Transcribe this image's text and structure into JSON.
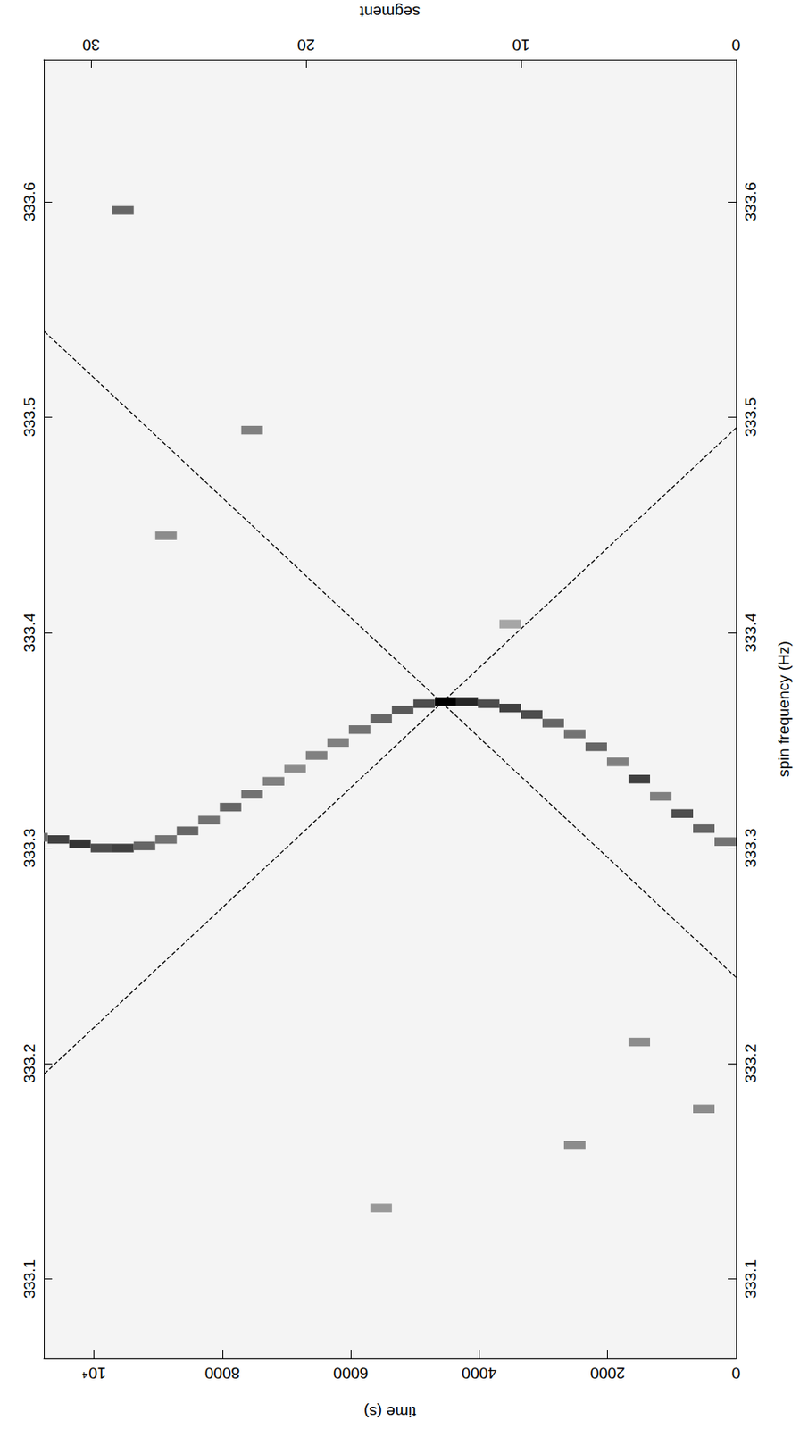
{
  "chart_data": {
    "type": "heatmap",
    "x_label": "time (s)",
    "x2_label": "segment",
    "y_label": "spin frequency (Hz)",
    "xlim": [
      0,
      10780
    ],
    "xticks": [
      0,
      2000,
      4000,
      6000,
      8000,
      {
        "value": 10000,
        "label": "10⁴"
      }
    ],
    "x2lim": [
      0,
      32.2
    ],
    "x2ticks": [
      0,
      10,
      20,
      30
    ],
    "ylim": [
      333.063,
      333.666
    ],
    "yticks": [
      333.1,
      333.2,
      333.3,
      333.4,
      333.5,
      333.6
    ],
    "grid": false,
    "segment_duration": 335,
    "frequency_bin": 0.004,
    "zlim": [
      0,
      1
    ],
    "cells": [
      [
        0,
        333.303,
        0.55
      ],
      [
        335,
        333.309,
        0.6
      ],
      [
        670,
        333.316,
        0.7
      ],
      [
        1005,
        333.324,
        0.5
      ],
      [
        1340,
        333.332,
        0.75
      ],
      [
        1675,
        333.34,
        0.5
      ],
      [
        2010,
        333.347,
        0.6
      ],
      [
        2345,
        333.353,
        0.55
      ],
      [
        2680,
        333.358,
        0.6
      ],
      [
        3015,
        333.362,
        0.7
      ],
      [
        3350,
        333.365,
        0.75
      ],
      [
        3685,
        333.367,
        0.7
      ],
      [
        4020,
        333.368,
        0.85
      ],
      [
        4355,
        333.368,
        1.0
      ],
      [
        4690,
        333.367,
        0.7
      ],
      [
        5025,
        333.364,
        0.65
      ],
      [
        5360,
        333.36,
        0.6
      ],
      [
        5695,
        333.355,
        0.55
      ],
      [
        6030,
        333.349,
        0.5
      ],
      [
        6365,
        333.343,
        0.5
      ],
      [
        6700,
        333.337,
        0.45
      ],
      [
        7035,
        333.331,
        0.5
      ],
      [
        7370,
        333.325,
        0.55
      ],
      [
        7705,
        333.319,
        0.6
      ],
      [
        8040,
        333.313,
        0.55
      ],
      [
        8375,
        333.308,
        0.6
      ],
      [
        8710,
        333.304,
        0.55
      ],
      [
        9045,
        333.301,
        0.6
      ],
      [
        9380,
        333.3,
        0.75
      ],
      [
        9715,
        333.3,
        0.7
      ],
      [
        10050,
        333.302,
        0.8
      ],
      [
        10385,
        333.304,
        0.75
      ],
      [
        10720,
        333.305,
        0.6
      ],
      [
        9380,
        333.596,
        0.6
      ],
      [
        7370,
        333.494,
        0.5
      ],
      [
        2345,
        333.162,
        0.45
      ],
      [
        335,
        333.179,
        0.45
      ],
      [
        5360,
        333.133,
        0.4
      ],
      [
        3350,
        333.404,
        0.35
      ],
      [
        8710,
        333.445,
        0.45
      ],
      [
        1340,
        333.21,
        0.45
      ]
    ],
    "lines": [
      {
        "x": [
          0,
          10780
        ],
        "y": [
          333.24,
          333.54
        ],
        "color": "#000000",
        "line_style": "dashed"
      },
      {
        "x": [
          0,
          10780
        ],
        "y": [
          333.495,
          333.195
        ],
        "color": "#000000",
        "line_style": "dashed"
      }
    ]
  }
}
